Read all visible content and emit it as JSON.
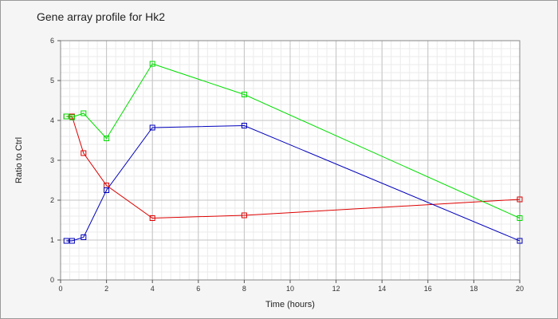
{
  "chart_data": {
    "type": "line",
    "title": "Gene array profile for Hk2",
    "xlabel": "Time (hours)",
    "ylabel": "Ratio to Ctrl",
    "xlim": [
      0,
      20
    ],
    "ylim": [
      0,
      6
    ],
    "x_ticks": [
      0,
      2,
      4,
      6,
      8,
      10,
      12,
      14,
      16,
      18,
      20
    ],
    "y_ticks": [
      0,
      1,
      2,
      3,
      4,
      5,
      6
    ],
    "grid": true,
    "series": [
      {
        "x": [
          0.25,
          0.5,
          1,
          2,
          4,
          8,
          20
        ],
        "y": [
          4.1,
          4.1,
          3.18,
          2.37,
          1.55,
          1.62,
          2.02
        ],
        "color": "#dd0000"
      },
      {
        "x": [
          0.25,
          0.5,
          1,
          2,
          4,
          8,
          20
        ],
        "y": [
          4.1,
          4.08,
          4.18,
          3.55,
          5.42,
          4.65,
          1.55
        ],
        "color": "#00dd00"
      },
      {
        "x": [
          0.25,
          0.5,
          1,
          2,
          4,
          8,
          20
        ],
        "y": [
          0.98,
          0.98,
          1.07,
          2.25,
          3.82,
          3.87,
          0.98
        ],
        "color": "#0000bb"
      }
    ]
  }
}
